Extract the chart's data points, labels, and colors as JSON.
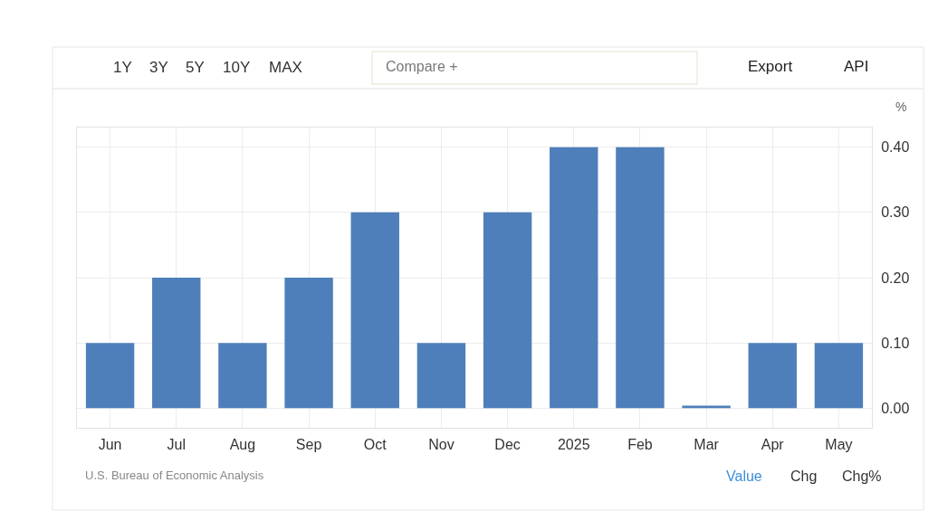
{
  "chart_data": {
    "type": "bar",
    "categories": [
      "Jun",
      "Jul",
      "Aug",
      "Sep",
      "Oct",
      "Nov",
      "Dec",
      "2025",
      "Feb",
      "Mar",
      "Apr",
      "May"
    ],
    "values": [
      0.1,
      0.2,
      0.1,
      0.2,
      0.3,
      0.1,
      0.3,
      0.4,
      0.4,
      0.004,
      0.1,
      0.1
    ],
    "color": "#4e7fbb",
    "ylabel": "%",
    "ylim": [
      -0.03,
      0.43
    ],
    "yticks": [
      {
        "value": 0,
        "label": "0.00"
      },
      {
        "value": 0.1,
        "label": "0.10"
      },
      {
        "value": 0.2,
        "label": "0.20"
      },
      {
        "value": 0.3,
        "label": "0.30"
      },
      {
        "value": 0.4,
        "label": "0.40"
      }
    ],
    "grid": true,
    "annotations": [
      "U.S. Bureau of Economic Analysis",
      "1Y",
      "3Y",
      "5Y",
      "10Y",
      "MAX",
      "Compare +",
      "Export",
      "API",
      "Value",
      "Chg",
      "Chg%"
    ]
  }
}
